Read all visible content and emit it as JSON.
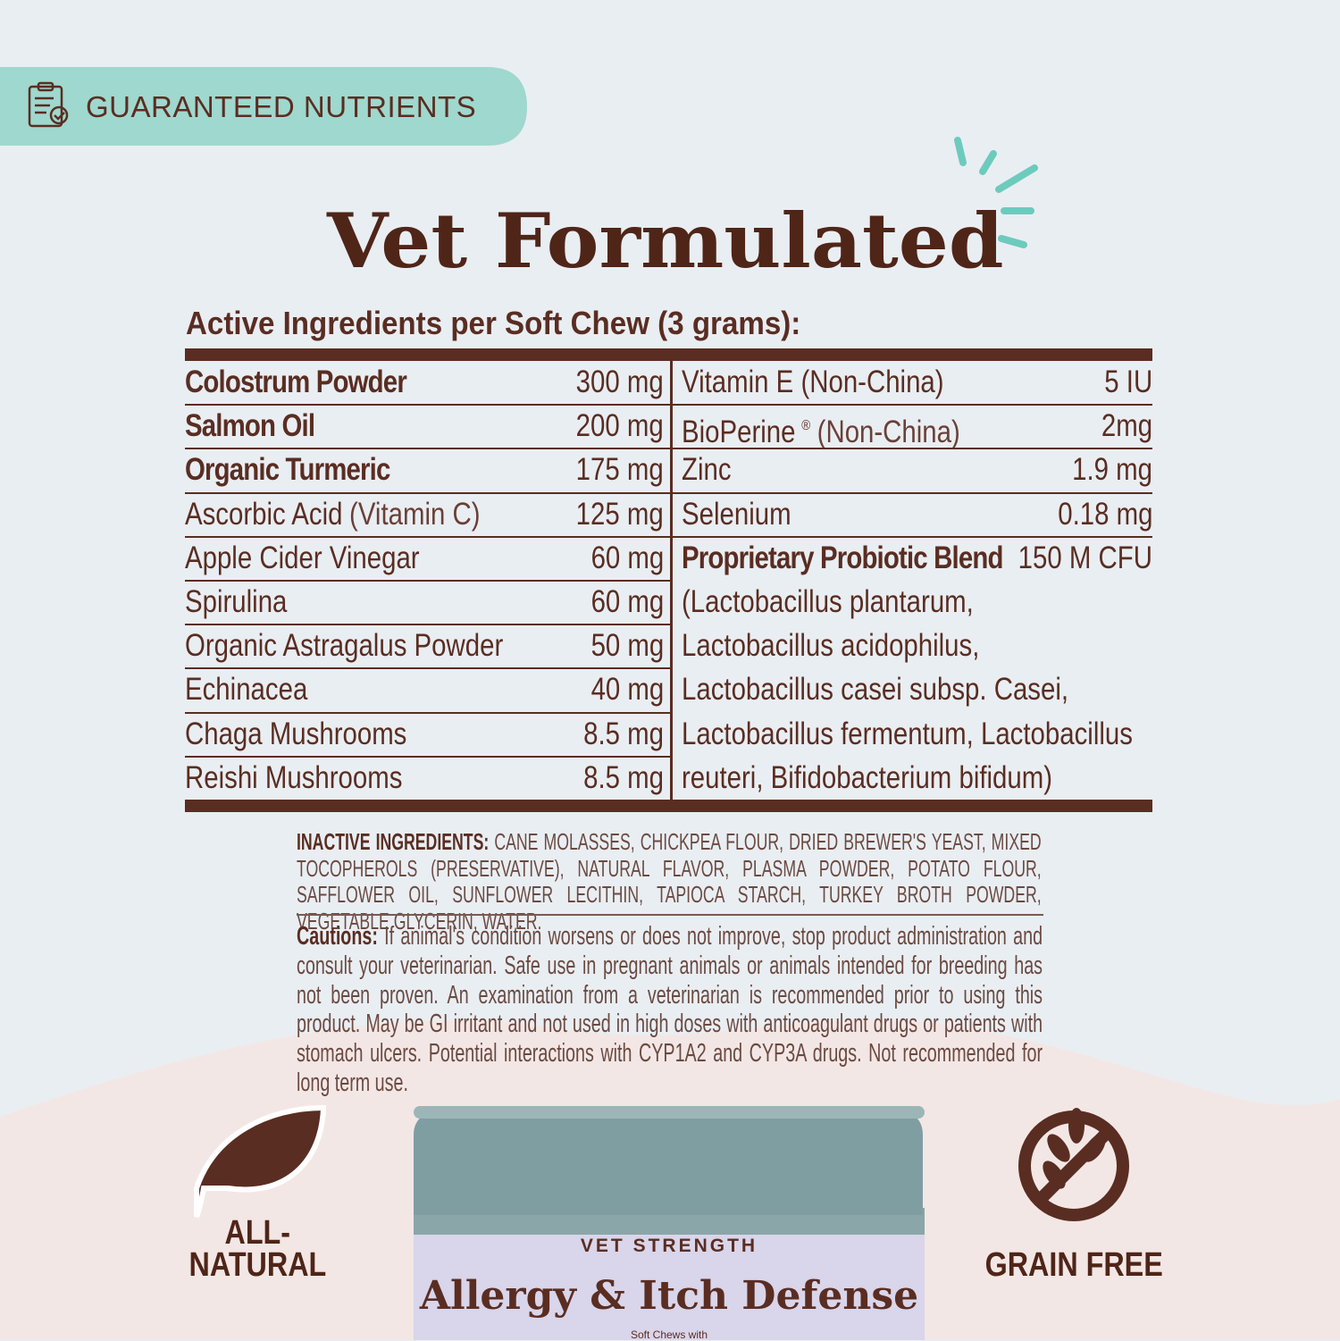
{
  "badge": {
    "label": "GUARANTEED NUTRIENTS"
  },
  "title": "Vet Formulated",
  "table": {
    "heading": "Active Ingredients per Soft Chew (3 grams):",
    "left": [
      {
        "name": "Colostrum Powder",
        "amount": "300 mg"
      },
      {
        "name": "Salmon Oil",
        "amount": "200 mg"
      },
      {
        "name": "Organic Turmeric",
        "amount": "175 mg"
      },
      {
        "name": "Ascorbic Acid",
        "note": "(Vitamin C)",
        "amount": "125 mg"
      },
      {
        "name": "Apple Cider Vinegar",
        "amount": "60 mg"
      },
      {
        "name": "Spirulina",
        "amount": "60 mg"
      },
      {
        "name": "Organic Astragalus Powder",
        "amount": "50 mg"
      },
      {
        "name": "Echinacea",
        "amount": "40 mg"
      },
      {
        "name": "Chaga Mushrooms",
        "amount": "8.5 mg"
      },
      {
        "name": "Reishi Mushrooms",
        "amount": "8.5 mg"
      }
    ],
    "right": [
      {
        "name": "Vitamin E (Non-China)",
        "amount": "5 IU"
      },
      {
        "name": "BioPerine",
        "sup": "®",
        "note": "(Non-China)",
        "amount": "2mg"
      },
      {
        "name": "Zinc",
        "amount": "1.9 mg"
      },
      {
        "name": "Selenium",
        "amount": "0.18 mg"
      },
      {
        "name": "Proprietary Probiotic Blend",
        "amount": "150 M CFU"
      }
    ],
    "probiotic_strains": [
      "(Lactobacillus plantarum,",
      "Lactobacillus acidophilus,",
      "Lactobacillus casei subsp. Casei,",
      "Lactobacillus fermentum, Lactobacillus",
      "reuteri, Bifidobacterium bifidum)"
    ]
  },
  "inactive": {
    "label": "INACTIVE INGREDIENTS:",
    "text": "CANE MOLASSES, CHICKPEA FLOUR, DRIED BREWER'S YEAST, MIXED TOCOPHEROLS (PRESERVATIVE), NATURAL FLAVOR, PLASMA POWDER, POTATO FLOUR, SAFFLOWER OIL, SUNFLOWER LECITHIN, TAPIOCA STARCH, TURKEY BROTH POWDER, VEGETABLE GLYCERIN, WATER."
  },
  "cautions": {
    "label": "Cautions:",
    "text": "If animal's condition worsens or does not improve, stop product administration and consult your veterinarian. Safe use in pregnant animals or animals intended for breeding has not been proven. An examination from a veterinarian is recommended prior to using this product. May be GI irritant and not used in high doses with anticoagulant drugs or patients with stomach ulcers. Potential interactions with CYP1A2 and CYP3A drugs. Not recommended for long term use."
  },
  "features": [
    {
      "lines": [
        "ALL-",
        "NATURAL"
      ]
    },
    {
      "lines": [
        "GRAIN FREE"
      ]
    }
  ],
  "product": {
    "tagline": "VET STRENGTH",
    "name": "Allergy & Itch Defense",
    "subtitle": "Soft Chews with"
  }
}
